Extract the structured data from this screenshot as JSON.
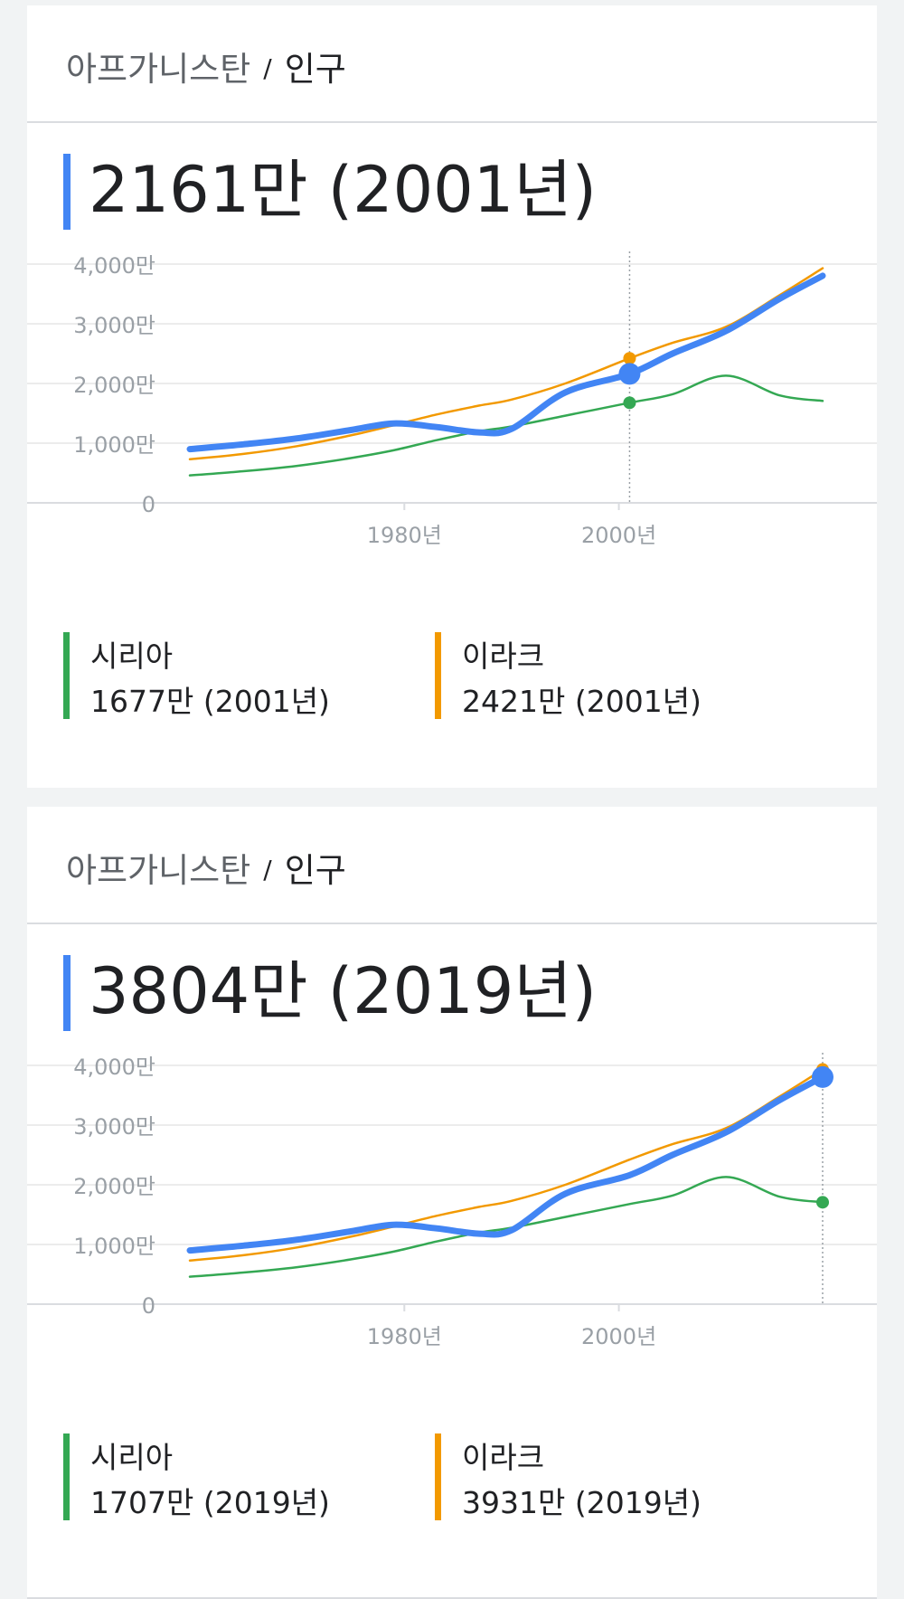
{
  "colors": {
    "afghanistan": "#4285f4",
    "syria": "#34a853",
    "iraq": "#f29900"
  },
  "cards": [
    {
      "breadcrumb": {
        "entity": "아프가니스탄",
        "separator": "/",
        "topic": "인구"
      },
      "headline": "2161만 (2001년)",
      "legend": [
        {
          "name": "시리아",
          "value": "1677만 (2001년)",
          "color": "#34a853"
        },
        {
          "name": "이라크",
          "value": "2421만 (2001년)",
          "color": "#f29900"
        }
      ]
    },
    {
      "breadcrumb": {
        "entity": "아프가니스탄",
        "separator": "/",
        "topic": "인구"
      },
      "headline": "3804만 (2019년)",
      "legend": [
        {
          "name": "시리아",
          "value": "1707만 (2019년)",
          "color": "#34a853"
        },
        {
          "name": "이라크",
          "value": "3931만 (2019년)",
          "color": "#f29900"
        }
      ]
    }
  ],
  "chart_data": [
    {
      "type": "line",
      "title": "",
      "xlabel": "",
      "ylabel": "",
      "ylim": [
        0,
        4000
      ],
      "xlim": [
        1960,
        2019
      ],
      "y_ticks": [
        0,
        1000,
        2000,
        3000,
        4000
      ],
      "y_tick_labels": [
        "0",
        "1,000만",
        "2,000만",
        "3,000만",
        "4,000만"
      ],
      "x_ticks": [
        1980,
        2000
      ],
      "x_tick_labels": [
        "1980년",
        "2000년"
      ],
      "grid": true,
      "highlight_x": 2001,
      "x": [
        1960,
        1965,
        1970,
        1975,
        1979,
        1983,
        1987,
        1990,
        1995,
        2001,
        2005,
        2010,
        2015,
        2019
      ],
      "series": [
        {
          "name": "아프가니스탄",
          "color": "#4285f4",
          "values": [
            900,
            980,
            1080,
            1220,
            1330,
            1270,
            1180,
            1240,
            1850,
            2161,
            2500,
            2880,
            3420,
            3804
          ]
        },
        {
          "name": "시리아",
          "color": "#34a853",
          "values": [
            460,
            530,
            620,
            750,
            880,
            1050,
            1200,
            1280,
            1460,
            1677,
            1820,
            2130,
            1800,
            1707
          ]
        },
        {
          "name": "이라크",
          "color": "#f29900",
          "values": [
            730,
            820,
            950,
            1130,
            1300,
            1480,
            1630,
            1730,
            2000,
            2421,
            2680,
            2950,
            3480,
            3931
          ]
        }
      ]
    },
    {
      "type": "line",
      "title": "",
      "xlabel": "",
      "ylabel": "",
      "ylim": [
        0,
        4000
      ],
      "xlim": [
        1960,
        2019
      ],
      "y_ticks": [
        0,
        1000,
        2000,
        3000,
        4000
      ],
      "y_tick_labels": [
        "0",
        "1,000만",
        "2,000만",
        "3,000만",
        "4,000만"
      ],
      "x_ticks": [
        1980,
        2000
      ],
      "x_tick_labels": [
        "1980년",
        "2000년"
      ],
      "grid": true,
      "highlight_x": 2019,
      "x": [
        1960,
        1965,
        1970,
        1975,
        1979,
        1983,
        1987,
        1990,
        1995,
        2001,
        2005,
        2010,
        2015,
        2019
      ],
      "series": [
        {
          "name": "아프가니스탄",
          "color": "#4285f4",
          "values": [
            900,
            980,
            1080,
            1220,
            1330,
            1270,
            1180,
            1240,
            1850,
            2161,
            2500,
            2880,
            3420,
            3804
          ]
        },
        {
          "name": "시리아",
          "color": "#34a853",
          "values": [
            460,
            530,
            620,
            750,
            880,
            1050,
            1200,
            1280,
            1460,
            1677,
            1820,
            2130,
            1800,
            1707
          ]
        },
        {
          "name": "이라크",
          "color": "#f29900",
          "values": [
            730,
            820,
            950,
            1130,
            1300,
            1480,
            1630,
            1730,
            2000,
            2421,
            2680,
            2950,
            3480,
            3931
          ]
        }
      ]
    }
  ]
}
